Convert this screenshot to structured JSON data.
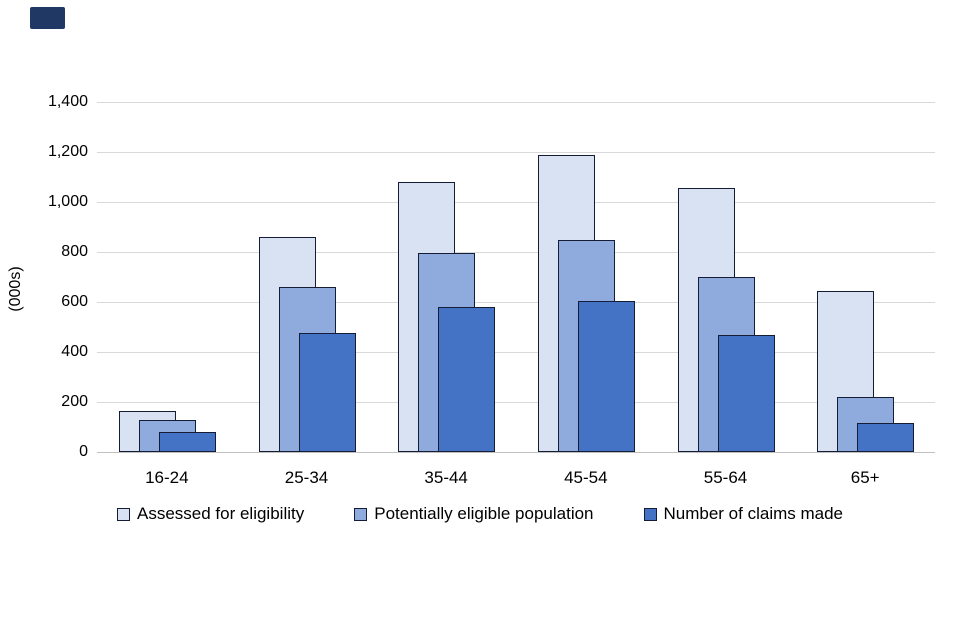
{
  "page": {
    "background": "#ffffff",
    "corner_artifact_color": "#203864"
  },
  "chart_data": {
    "type": "bar",
    "title": "",
    "xlabel": "",
    "ylabel": "(000s)",
    "categories": [
      "16-24",
      "25-34",
      "35-44",
      "45-54",
      "55-64",
      "65+"
    ],
    "series": [
      {
        "name": "Assessed for eligibility",
        "color": "#d9e2f3",
        "values": [
          165,
          860,
          1080,
          1190,
          1055,
          645
        ]
      },
      {
        "name": "Potentially eligible population",
        "color": "#8faadc",
        "values": [
          130,
          660,
          795,
          850,
          700,
          220
        ]
      },
      {
        "name": "Number of claims made",
        "color": "#4472c4",
        "values": [
          80,
          475,
          580,
          605,
          470,
          115
        ]
      }
    ],
    "bar_border_color": "#141d35",
    "ylim": [
      0,
      1400
    ],
    "ytick_step": 200,
    "ytick_labels": [
      "0",
      "200",
      "400",
      "600",
      "800",
      "1,000",
      "1,200",
      "1,400"
    ],
    "grid": true,
    "gridline_color": "#d9d9d9",
    "axis_line_color": "#c0c0c0",
    "legend_position": "bottom",
    "bar_style": "overlapped"
  }
}
